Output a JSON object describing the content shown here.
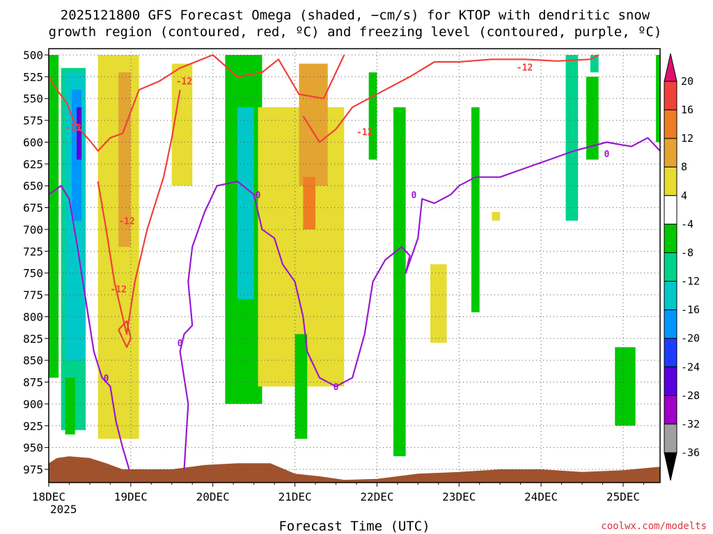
{
  "chart_data": {
    "type": "heatmap",
    "title_lines": [
      "2025121800 GFS Forecast Omega (shaded, −cm/s) for KTOP with dendritic snow",
      "growth region (contoured, red, ºC) and freezing level (contoured, purple, ºC)"
    ],
    "xlabel": "Forecast Time (UTC)",
    "x_tick_labels": [
      "18DEC",
      "19DEC",
      "20DEC",
      "21DEC",
      "22DEC",
      "23DEC",
      "24DEC",
      "25DEC"
    ],
    "x_first_tick_year": "2025",
    "xlim_days": [
      0,
      7.45
    ],
    "y_tick_labels": [
      "500",
      "525",
      "550",
      "575",
      "600",
      "625",
      "650",
      "675",
      "700",
      "725",
      "750",
      "775",
      "800",
      "825",
      "850",
      "875",
      "900",
      "925",
      "950",
      "975"
    ],
    "ylim_hpa": [
      500,
      990
    ],
    "y_inverted": true,
    "grid": "dotted",
    "colorbar": {
      "labels": [
        "20",
        "16",
        "12",
        "8",
        "4",
        "-4",
        "-8",
        "-12",
        "-16",
        "-20",
        "-24",
        "-28",
        "-32",
        "-36"
      ],
      "bins": [
        {
          "from": 20,
          "to": 24,
          "color": "#e0106e"
        },
        {
          "from": 16,
          "to": 20,
          "color": "#f0413a"
        },
        {
          "from": 12,
          "to": 16,
          "color": "#ee7d23"
        },
        {
          "from": 8,
          "to": 12,
          "color": "#e3a432"
        },
        {
          "from": 4,
          "to": 8,
          "color": "#e6dc32"
        },
        {
          "from": -4,
          "to": 4,
          "color": "#ffffff"
        },
        {
          "from": -8,
          "to": -4,
          "color": "#00c800"
        },
        {
          "from": -12,
          "to": -8,
          "color": "#00d28c"
        },
        {
          "from": -16,
          "to": -12,
          "color": "#00c8c8"
        },
        {
          "from": -20,
          "to": -16,
          "color": "#0096ff"
        },
        {
          "from": -24,
          "to": -20,
          "color": "#1e3cff"
        },
        {
          "from": -28,
          "to": -24,
          "color": "#5a00dc"
        },
        {
          "from": -32,
          "to": -28,
          "color": "#a000c8"
        },
        {
          "from": -36,
          "to": -32,
          "color": "#a0a0a0"
        },
        {
          "from": -40,
          "to": -36,
          "color": "#000000"
        }
      ]
    },
    "omega_regions": [
      {
        "value": -6,
        "t": [
          0.0,
          0.12
        ],
        "p": [
          500,
          870
        ]
      },
      {
        "value": -10,
        "t": [
          0.15,
          0.45
        ],
        "p": [
          515,
          930
        ]
      },
      {
        "value": -14,
        "t": [
          0.2,
          0.45
        ],
        "p": [
          520,
          850
        ]
      },
      {
        "value": -18,
        "t": [
          0.28,
          0.4
        ],
        "p": [
          540,
          690
        ]
      },
      {
        "value": -26,
        "t": [
          0.34,
          0.4
        ],
        "p": [
          560,
          620
        ]
      },
      {
        "value": -6,
        "t": [
          0.2,
          0.32
        ],
        "p": [
          870,
          935
        ]
      },
      {
        "value": 6,
        "t": [
          0.6,
          1.1
        ],
        "p": [
          500,
          940
        ]
      },
      {
        "value": 10,
        "t": [
          0.85,
          1.0
        ],
        "p": [
          520,
          720
        ]
      },
      {
        "value": 6,
        "t": [
          1.5,
          1.75
        ],
        "p": [
          510,
          650
        ]
      },
      {
        "value": -8,
        "t": [
          2.15,
          2.6
        ],
        "p": [
          500,
          900
        ]
      },
      {
        "value": -14,
        "t": [
          2.3,
          2.5
        ],
        "p": [
          560,
          780
        ]
      },
      {
        "value": 6,
        "t": [
          2.55,
          3.6
        ],
        "p": [
          560,
          880
        ]
      },
      {
        "value": 10,
        "t": [
          3.05,
          3.4
        ],
        "p": [
          510,
          650
        ]
      },
      {
        "value": 14,
        "t": [
          3.1,
          3.25
        ],
        "p": [
          640,
          700
        ]
      },
      {
        "value": -6,
        "t": [
          3.0,
          3.15
        ],
        "p": [
          820,
          940
        ]
      },
      {
        "value": -6,
        "t": [
          3.9,
          4.0
        ],
        "p": [
          520,
          620
        ]
      },
      {
        "value": -6,
        "t": [
          4.2,
          4.35
        ],
        "p": [
          560,
          960
        ]
      },
      {
        "value": 6,
        "t": [
          4.65,
          4.85
        ],
        "p": [
          740,
          830
        ]
      },
      {
        "value": -6,
        "t": [
          5.15,
          5.25
        ],
        "p": [
          560,
          795
        ]
      },
      {
        "value": -10,
        "t": [
          6.3,
          6.45
        ],
        "p": [
          500,
          690
        ]
      },
      {
        "value": -12,
        "t": [
          6.6,
          6.7
        ],
        "p": [
          500,
          520
        ]
      },
      {
        "value": -6,
        "t": [
          6.55,
          6.7
        ],
        "p": [
          525,
          620
        ]
      },
      {
        "value": -6,
        "t": [
          6.9,
          7.15
        ],
        "p": [
          835,
          925
        ]
      },
      {
        "value": -6,
        "t": [
          7.4,
          7.45
        ],
        "p": [
          500,
          600
        ]
      },
      {
        "value": 6,
        "t": [
          5.4,
          5.5
        ],
        "p": [
          680,
          690
        ]
      }
    ],
    "red_contour_label": "-12",
    "red_contours": [
      [
        [
          0.0,
          525
        ],
        [
          0.1,
          540
        ],
        [
          0.22,
          555
        ],
        [
          0.3,
          575
        ],
        [
          0.42,
          590
        ],
        [
          0.5,
          598
        ],
        [
          0.6,
          610
        ],
        [
          0.75,
          595
        ],
        [
          0.9,
          590
        ],
        [
          1.1,
          540
        ],
        [
          1.35,
          530
        ],
        [
          1.6,
          515
        ],
        [
          2.0,
          500
        ],
        [
          2.3,
          525
        ],
        [
          2.6,
          520
        ],
        [
          2.8,
          505
        ],
        [
          3.05,
          545
        ],
        [
          3.35,
          550
        ],
        [
          3.6,
          500
        ]
      ],
      [
        [
          3.1,
          570
        ],
        [
          3.3,
          600
        ],
        [
          3.5,
          585
        ],
        [
          3.7,
          560
        ],
        [
          3.9,
          550
        ],
        [
          4.2,
          535
        ],
        [
          4.4,
          525
        ],
        [
          4.7,
          508
        ],
        [
          5.0,
          508
        ],
        [
          5.4,
          505
        ],
        [
          5.8,
          505
        ],
        [
          6.2,
          507
        ],
        [
          6.6,
          505
        ],
        [
          6.7,
          500
        ]
      ],
      [
        [
          0.6,
          645
        ],
        [
          0.7,
          700
        ],
        [
          0.8,
          760
        ],
        [
          0.95,
          820
        ],
        [
          1.05,
          760
        ],
        [
          1.2,
          700
        ],
        [
          1.4,
          640
        ],
        [
          1.5,
          595
        ],
        [
          1.6,
          540
        ]
      ],
      [
        [
          0.85,
          815
        ],
        [
          0.95,
          835
        ],
        [
          1.0,
          825
        ],
        [
          0.95,
          805
        ],
        [
          0.85,
          815
        ]
      ]
    ],
    "red_labels": [
      {
        "t": 1.65,
        "p": 530
      },
      {
        "t": 0.3,
        "p": 583
      },
      {
        "t": 3.85,
        "p": 588
      },
      {
        "t": 5.8,
        "p": 514
      },
      {
        "t": 0.95,
        "p": 690
      },
      {
        "t": 0.85,
        "p": 768
      }
    ],
    "purple_contour_label": "0",
    "purple_contours": [
      [
        [
          0.0,
          660
        ],
        [
          0.15,
          650
        ],
        [
          0.25,
          665
        ],
        [
          0.35,
          720
        ],
        [
          0.45,
          780
        ],
        [
          0.55,
          840
        ],
        [
          0.65,
          870
        ],
        [
          0.75,
          880
        ],
        [
          0.82,
          920
        ],
        [
          0.9,
          950
        ],
        [
          0.98,
          975
        ]
      ],
      [
        [
          1.65,
          975
        ],
        [
          1.7,
          900
        ],
        [
          1.6,
          840
        ],
        [
          1.65,
          820
        ],
        [
          1.75,
          810
        ],
        [
          1.7,
          760
        ],
        [
          1.75,
          720
        ],
        [
          1.9,
          680
        ],
        [
          2.05,
          650
        ],
        [
          2.3,
          645
        ],
        [
          2.5,
          660
        ],
        [
          2.6,
          700
        ],
        [
          2.75,
          710
        ],
        [
          2.85,
          740
        ],
        [
          3.0,
          760
        ],
        [
          3.1,
          800
        ],
        [
          3.15,
          840
        ],
        [
          3.3,
          870
        ],
        [
          3.5,
          880
        ],
        [
          3.7,
          870
        ],
        [
          3.85,
          820
        ],
        [
          3.95,
          760
        ],
        [
          4.1,
          735
        ],
        [
          4.3,
          720
        ],
        [
          4.4,
          730
        ],
        [
          4.35,
          750
        ],
        [
          4.5,
          710
        ],
        [
          4.55,
          665
        ],
        [
          4.7,
          670
        ],
        [
          4.9,
          660
        ],
        [
          5.0,
          650
        ],
        [
          5.2,
          640
        ],
        [
          5.5,
          640
        ],
        [
          5.8,
          630
        ],
        [
          6.1,
          620
        ],
        [
          6.4,
          610
        ],
        [
          6.8,
          600
        ],
        [
          7.1,
          605
        ],
        [
          7.3,
          595
        ],
        [
          7.45,
          610
        ]
      ]
    ],
    "purple_labels": [
      {
        "t": 2.55,
        "p": 660
      },
      {
        "t": 3.5,
        "p": 880
      },
      {
        "t": 6.8,
        "p": 613
      },
      {
        "t": 4.45,
        "p": 660
      },
      {
        "t": 0.7,
        "p": 870
      },
      {
        "t": 1.6,
        "p": 830
      }
    ],
    "terrain_color": "#a0522d",
    "terrain_top": [
      [
        0.0,
        968
      ],
      [
        0.1,
        962
      ],
      [
        0.25,
        960
      ],
      [
        0.5,
        962
      ],
      [
        0.7,
        968
      ],
      [
        0.9,
        975
      ],
      [
        1.5,
        975
      ],
      [
        1.9,
        970
      ],
      [
        2.3,
        968
      ],
      [
        2.7,
        968
      ],
      [
        3.0,
        980
      ],
      [
        3.3,
        983
      ],
      [
        3.6,
        987
      ],
      [
        4.0,
        986
      ],
      [
        4.5,
        980
      ],
      [
        5.0,
        978
      ],
      [
        5.5,
        975
      ],
      [
        6.0,
        975
      ],
      [
        6.5,
        978
      ],
      [
        7.0,
        976
      ],
      [
        7.45,
        972
      ]
    ]
  },
  "credit": "coolwx.com/modelts"
}
